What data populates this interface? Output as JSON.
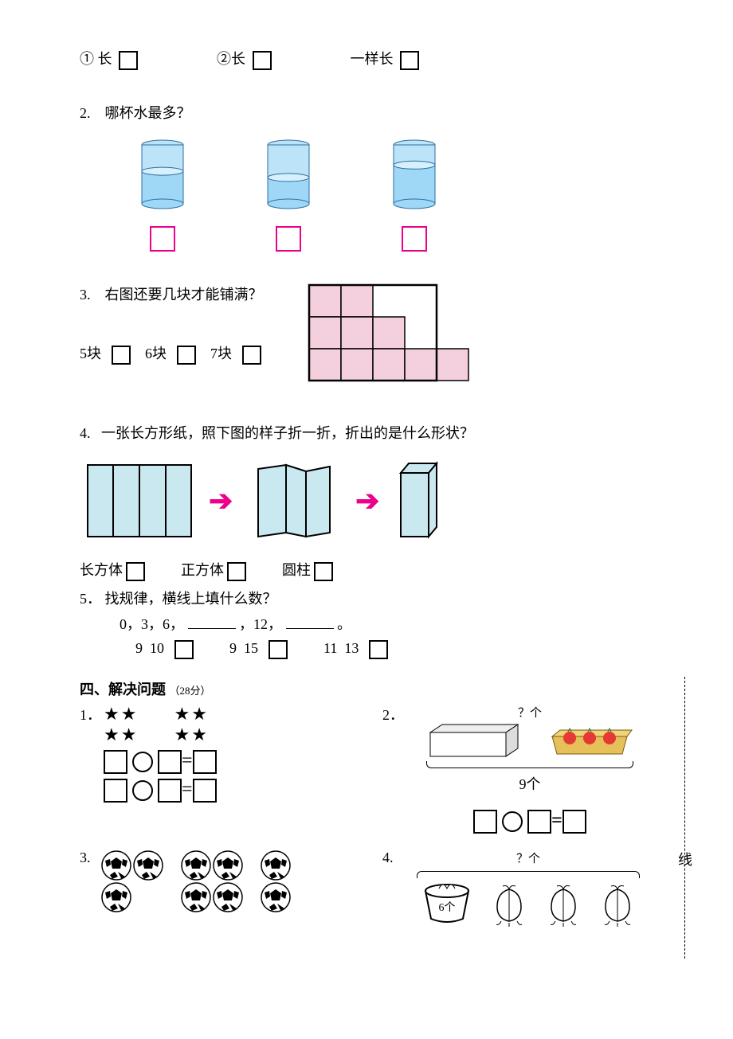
{
  "q1": {
    "opt1": "① 长",
    "opt2": "②长",
    "opt3": "一样长"
  },
  "q2": {
    "num": "2.",
    "title": "哪杯水最多？",
    "cups": {
      "water_color": "#9fd8f7",
      "glass_color": "#bde3f8",
      "levels": [
        0.55,
        0.45,
        0.65
      ],
      "cup_w": 52,
      "cup_h": 78
    }
  },
  "q3": {
    "num": "3.",
    "title": "右图还要几块才能铺满？",
    "opts": [
      {
        "label": "5块"
      },
      {
        "label": "6块"
      },
      {
        "label": "7块"
      }
    ],
    "tiles": {
      "rows": 3,
      "cols": 5,
      "cell": 40,
      "fill": "#f4cfdd",
      "stroke": "#000",
      "outline_w": 5,
      "outline_h": 3,
      "filled": [
        [
          0,
          0
        ],
        [
          0,
          1
        ],
        [
          1,
          0
        ],
        [
          1,
          1
        ],
        [
          1,
          2
        ],
        [
          2,
          0
        ],
        [
          2,
          1
        ],
        [
          2,
          2
        ],
        [
          2,
          3
        ],
        [
          2,
          4
        ]
      ]
    }
  },
  "q4": {
    "num": "4.",
    "title": "一张长方形纸，照下图的样子折一折，折出的是什么形状？",
    "opts": [
      {
        "label": "长方体"
      },
      {
        "label": "正方体"
      },
      {
        "label": "圆柱"
      }
    ],
    "colors": {
      "face": "#c9e8f0",
      "stroke": "#000"
    }
  },
  "q5": {
    "num": "5．",
    "title": "找规律，横线上填什么数？",
    "seq_prefix": "0，3，6，",
    "seq_mid": "，12，",
    "seq_suffix": "。",
    "opts": [
      {
        "a": "9",
        "b": "10"
      },
      {
        "a": "9",
        "b": "15"
      },
      {
        "a": "11",
        "b": "13"
      }
    ]
  },
  "section4": {
    "heading": "四、解决问题",
    "points": "（28分）",
    "p1_num": "1．",
    "p2_num": "2．",
    "p3_num": "3.",
    "p4_num": "4.",
    "p2_top": "？个",
    "p2_total": "9个",
    "p4_top": "？个",
    "p4_box": "6个",
    "star": "★",
    "star_count_per_group": 2,
    "star_groups": 4,
    "tomato_color": "#e53935",
    "tray_color": "#e6c15a"
  },
  "side_label": "线"
}
